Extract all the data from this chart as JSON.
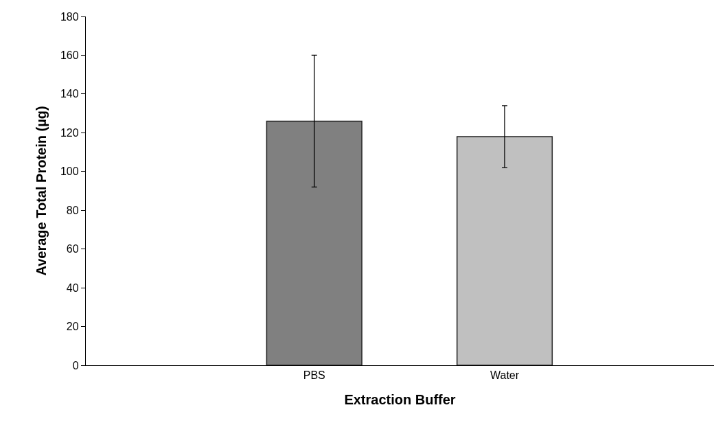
{
  "chart_data": {
    "type": "bar",
    "xlabel": "Extraction Buffer",
    "ylabel": "Average Total Protein (µg)",
    "categories": [
      "PBS",
      "Water"
    ],
    "values": [
      126,
      118
    ],
    "colors": [
      "#808080",
      "#c0c0c0"
    ],
    "errors": [
      34,
      16
    ],
    "ylim": [
      0,
      180
    ],
    "yticks": [
      0,
      20,
      40,
      60,
      80,
      100,
      120,
      140,
      160,
      180
    ],
    "grid": false
  }
}
